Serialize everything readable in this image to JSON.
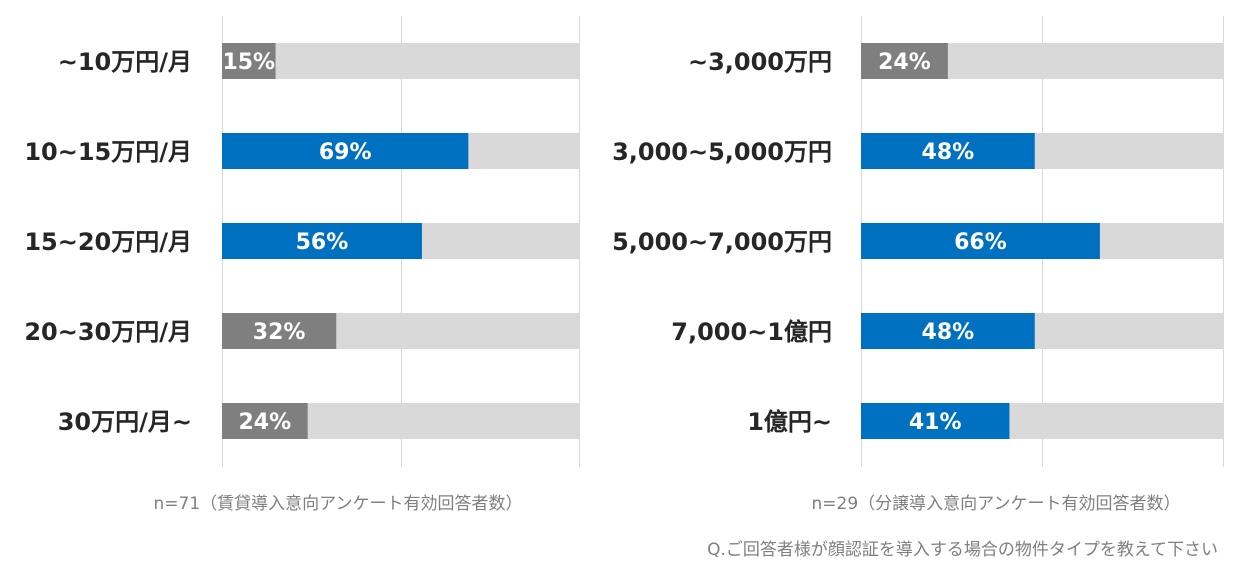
{
  "colors": {
    "highlight": "#0070c0",
    "normal": "#7f7f7f",
    "track": "#d9d9d9",
    "grid": "#d9d9d9",
    "label": "#262626",
    "note": "#7f7f7f"
  },
  "chart_data": [
    {
      "type": "bar",
      "orientation": "horizontal",
      "title": "",
      "xlim": [
        0,
        100
      ],
      "grid": true,
      "categories": [
        "~10万円/月",
        "10~15万円/月",
        "15~20万円/月",
        "20~30万円/月",
        "30万円/月~"
      ],
      "values": [
        15,
        69,
        56,
        32,
        24
      ],
      "labels": [
        "15%",
        "69%",
        "56%",
        "32%",
        "24%"
      ],
      "highlight": [
        false,
        true,
        true,
        false,
        false
      ],
      "note": "n=71（賃貸導入意向アンケート有効回答者数）"
    },
    {
      "type": "bar",
      "orientation": "horizontal",
      "title": "",
      "xlim": [
        0,
        100
      ],
      "grid": true,
      "categories": [
        "~3,000万円",
        "3,000~5,000万円",
        "5,000~7,000万円",
        "7,000~1億円",
        "1億円~"
      ],
      "values": [
        24,
        48,
        66,
        48,
        41
      ],
      "labels": [
        "24%",
        "48%",
        "66%",
        "48%",
        "41%"
      ],
      "highlight": [
        false,
        true,
        true,
        true,
        true
      ],
      "note": "n=29（分譲導入意向アンケート有効回答者数）"
    }
  ],
  "question": "Q.ご回答者様が顔認証を導入する場合の物件タイプを教えて下さい"
}
